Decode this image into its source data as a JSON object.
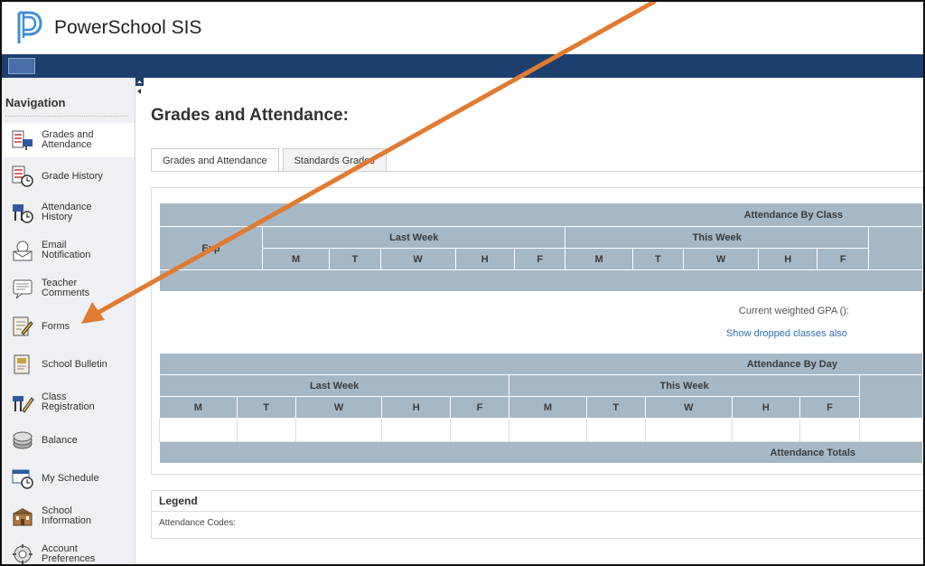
{
  "header": {
    "title": "PowerSchool SIS"
  },
  "sidebar": {
    "title": "Navigation",
    "items": [
      {
        "line1": "Grades and",
        "line2": "Attendance",
        "icon": "grades-attendance-icon"
      },
      {
        "line1": "Grade History",
        "line2": "",
        "icon": "grade-history-icon"
      },
      {
        "line1": "Attendance",
        "line2": "History",
        "icon": "attendance-history-icon"
      },
      {
        "line1": "Email",
        "line2": "Notification",
        "icon": "email-icon"
      },
      {
        "line1": "Teacher",
        "line2": "Comments",
        "icon": "comments-icon"
      },
      {
        "line1": "Forms",
        "line2": "",
        "icon": "forms-icon"
      },
      {
        "line1": "School Bulletin",
        "line2": "",
        "icon": "bulletin-icon"
      },
      {
        "line1": "Class",
        "line2": "Registration",
        "icon": "registration-icon"
      },
      {
        "line1": "Balance",
        "line2": "",
        "icon": "balance-icon"
      },
      {
        "line1": "My Schedule",
        "line2": "",
        "icon": "schedule-icon"
      },
      {
        "line1": "School",
        "line2": "Information",
        "icon": "school-info-icon"
      },
      {
        "line1": "Account",
        "line2": "Preferences",
        "icon": "account-preferences-icon"
      }
    ]
  },
  "main": {
    "title": "Grades and Attendance:",
    "tabs": [
      {
        "label": "Grades and Attendance"
      },
      {
        "label": "Standards Grades"
      }
    ],
    "attendance_by_class": {
      "caption": "Attendance By Class",
      "exp_label": "Exp",
      "last_week": "Last Week",
      "this_week": "This Week",
      "days": [
        "M",
        "T",
        "W",
        "H",
        "F"
      ]
    },
    "gpa_label": "Current weighted GPA ():",
    "show_dropped": "Show dropped classes also",
    "attendance_by_day": {
      "caption": "Attendance By Day",
      "last_week": "Last Week",
      "this_week": "This Week",
      "days": [
        "M",
        "T",
        "W",
        "H",
        "F"
      ],
      "totals": "Attendance Totals"
    },
    "legend": {
      "title": "Legend",
      "codes_label": "Attendance Codes:"
    }
  },
  "colors": {
    "bluebar": "#1d3f6e",
    "table_header": "#a6b8c6",
    "link": "#2f6fb6",
    "arrow": "#e07b32"
  }
}
